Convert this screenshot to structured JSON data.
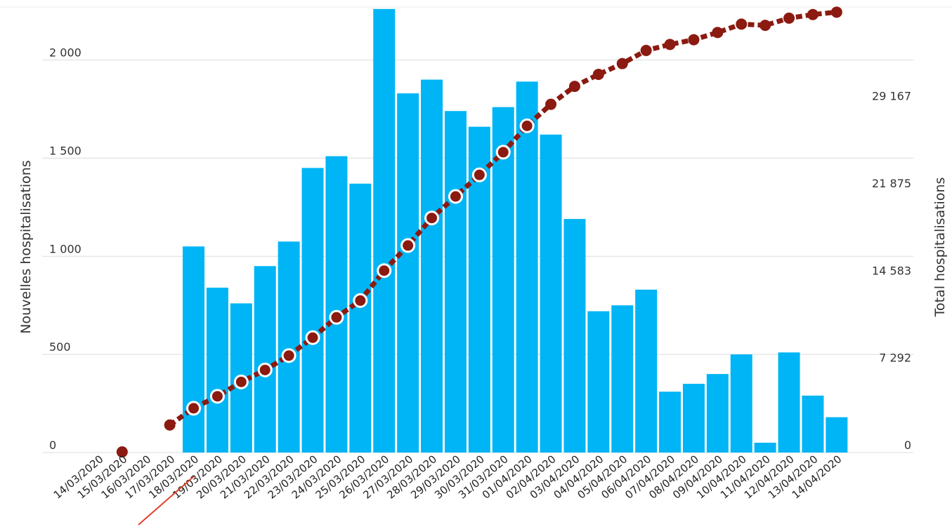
{
  "chart_data": {
    "type": "bar+line",
    "categories": [
      "14/03/2020",
      "15/03/2020",
      "16/03/2020",
      "17/03/2020",
      "18/03/2020",
      "19/03/2020",
      "20/03/2020",
      "21/03/2020",
      "22/03/2020",
      "23/03/2020",
      "24/03/2020",
      "25/03/2020",
      "26/03/2020",
      "27/03/2020",
      "28/03/2020",
      "29/03/2020",
      "30/03/2020",
      "31/03/2020",
      "01/04/2020",
      "02/04/2020",
      "03/04/2020",
      "04/04/2020",
      "05/04/2020",
      "06/04/2020",
      "07/04/2020",
      "08/04/2020",
      "09/04/2020",
      "10/04/2020",
      "11/04/2020",
      "12/04/2020",
      "13/04/2020",
      "14/04/2020"
    ],
    "series": [
      {
        "type": "bar",
        "axis": "left",
        "values": [
          null,
          null,
          null,
          null,
          1050,
          840,
          760,
          950,
          1075,
          1450,
          1510,
          1370,
          2260,
          1830,
          1900,
          1740,
          1660,
          1760,
          1890,
          1620,
          1190,
          720,
          750,
          830,
          310,
          350,
          400,
          500,
          50,
          510,
          290,
          180
        ]
      },
      {
        "type": "line",
        "axis": "right",
        "values": [
          null,
          50,
          null,
          2300,
          3700,
          4700,
          5900,
          6900,
          8100,
          9600,
          11300,
          12700,
          15200,
          17300,
          19600,
          21400,
          23200,
          25100,
          27300,
          29100,
          30600,
          31600,
          32500,
          33600,
          34100,
          34500,
          35100,
          35800,
          35700,
          36300,
          36600,
          36800
        ]
      }
    ],
    "ylabel": "Nouvelles hospitalisations",
    "y2label": "Total hospitalisations",
    "ylim": [
      0,
      2270
    ],
    "y2lim": [
      0,
      37230
    ],
    "yticks": [
      {
        "value": 0,
        "label": "0"
      },
      {
        "value": 500,
        "label": "500"
      },
      {
        "value": 1000,
        "label": "1 000"
      },
      {
        "value": 1500,
        "label": "1 500"
      },
      {
        "value": 2000,
        "label": "2 000"
      }
    ],
    "y2ticks": [
      {
        "value": 0,
        "label": "0"
      },
      {
        "value": 7292,
        "label": "7 292"
      },
      {
        "value": 14583,
        "label": "14 583"
      },
      {
        "value": 21875,
        "label": "21 875"
      },
      {
        "value": 29167,
        "label": "29 167"
      }
    ],
    "grid": true,
    "legend": "none",
    "colors": {
      "bar": "#00b5f5",
      "line": "#8b1a10",
      "marker_fill": "#8b1a10",
      "marker_stroke": "#ffffff",
      "annotation": "#e0402a"
    }
  }
}
